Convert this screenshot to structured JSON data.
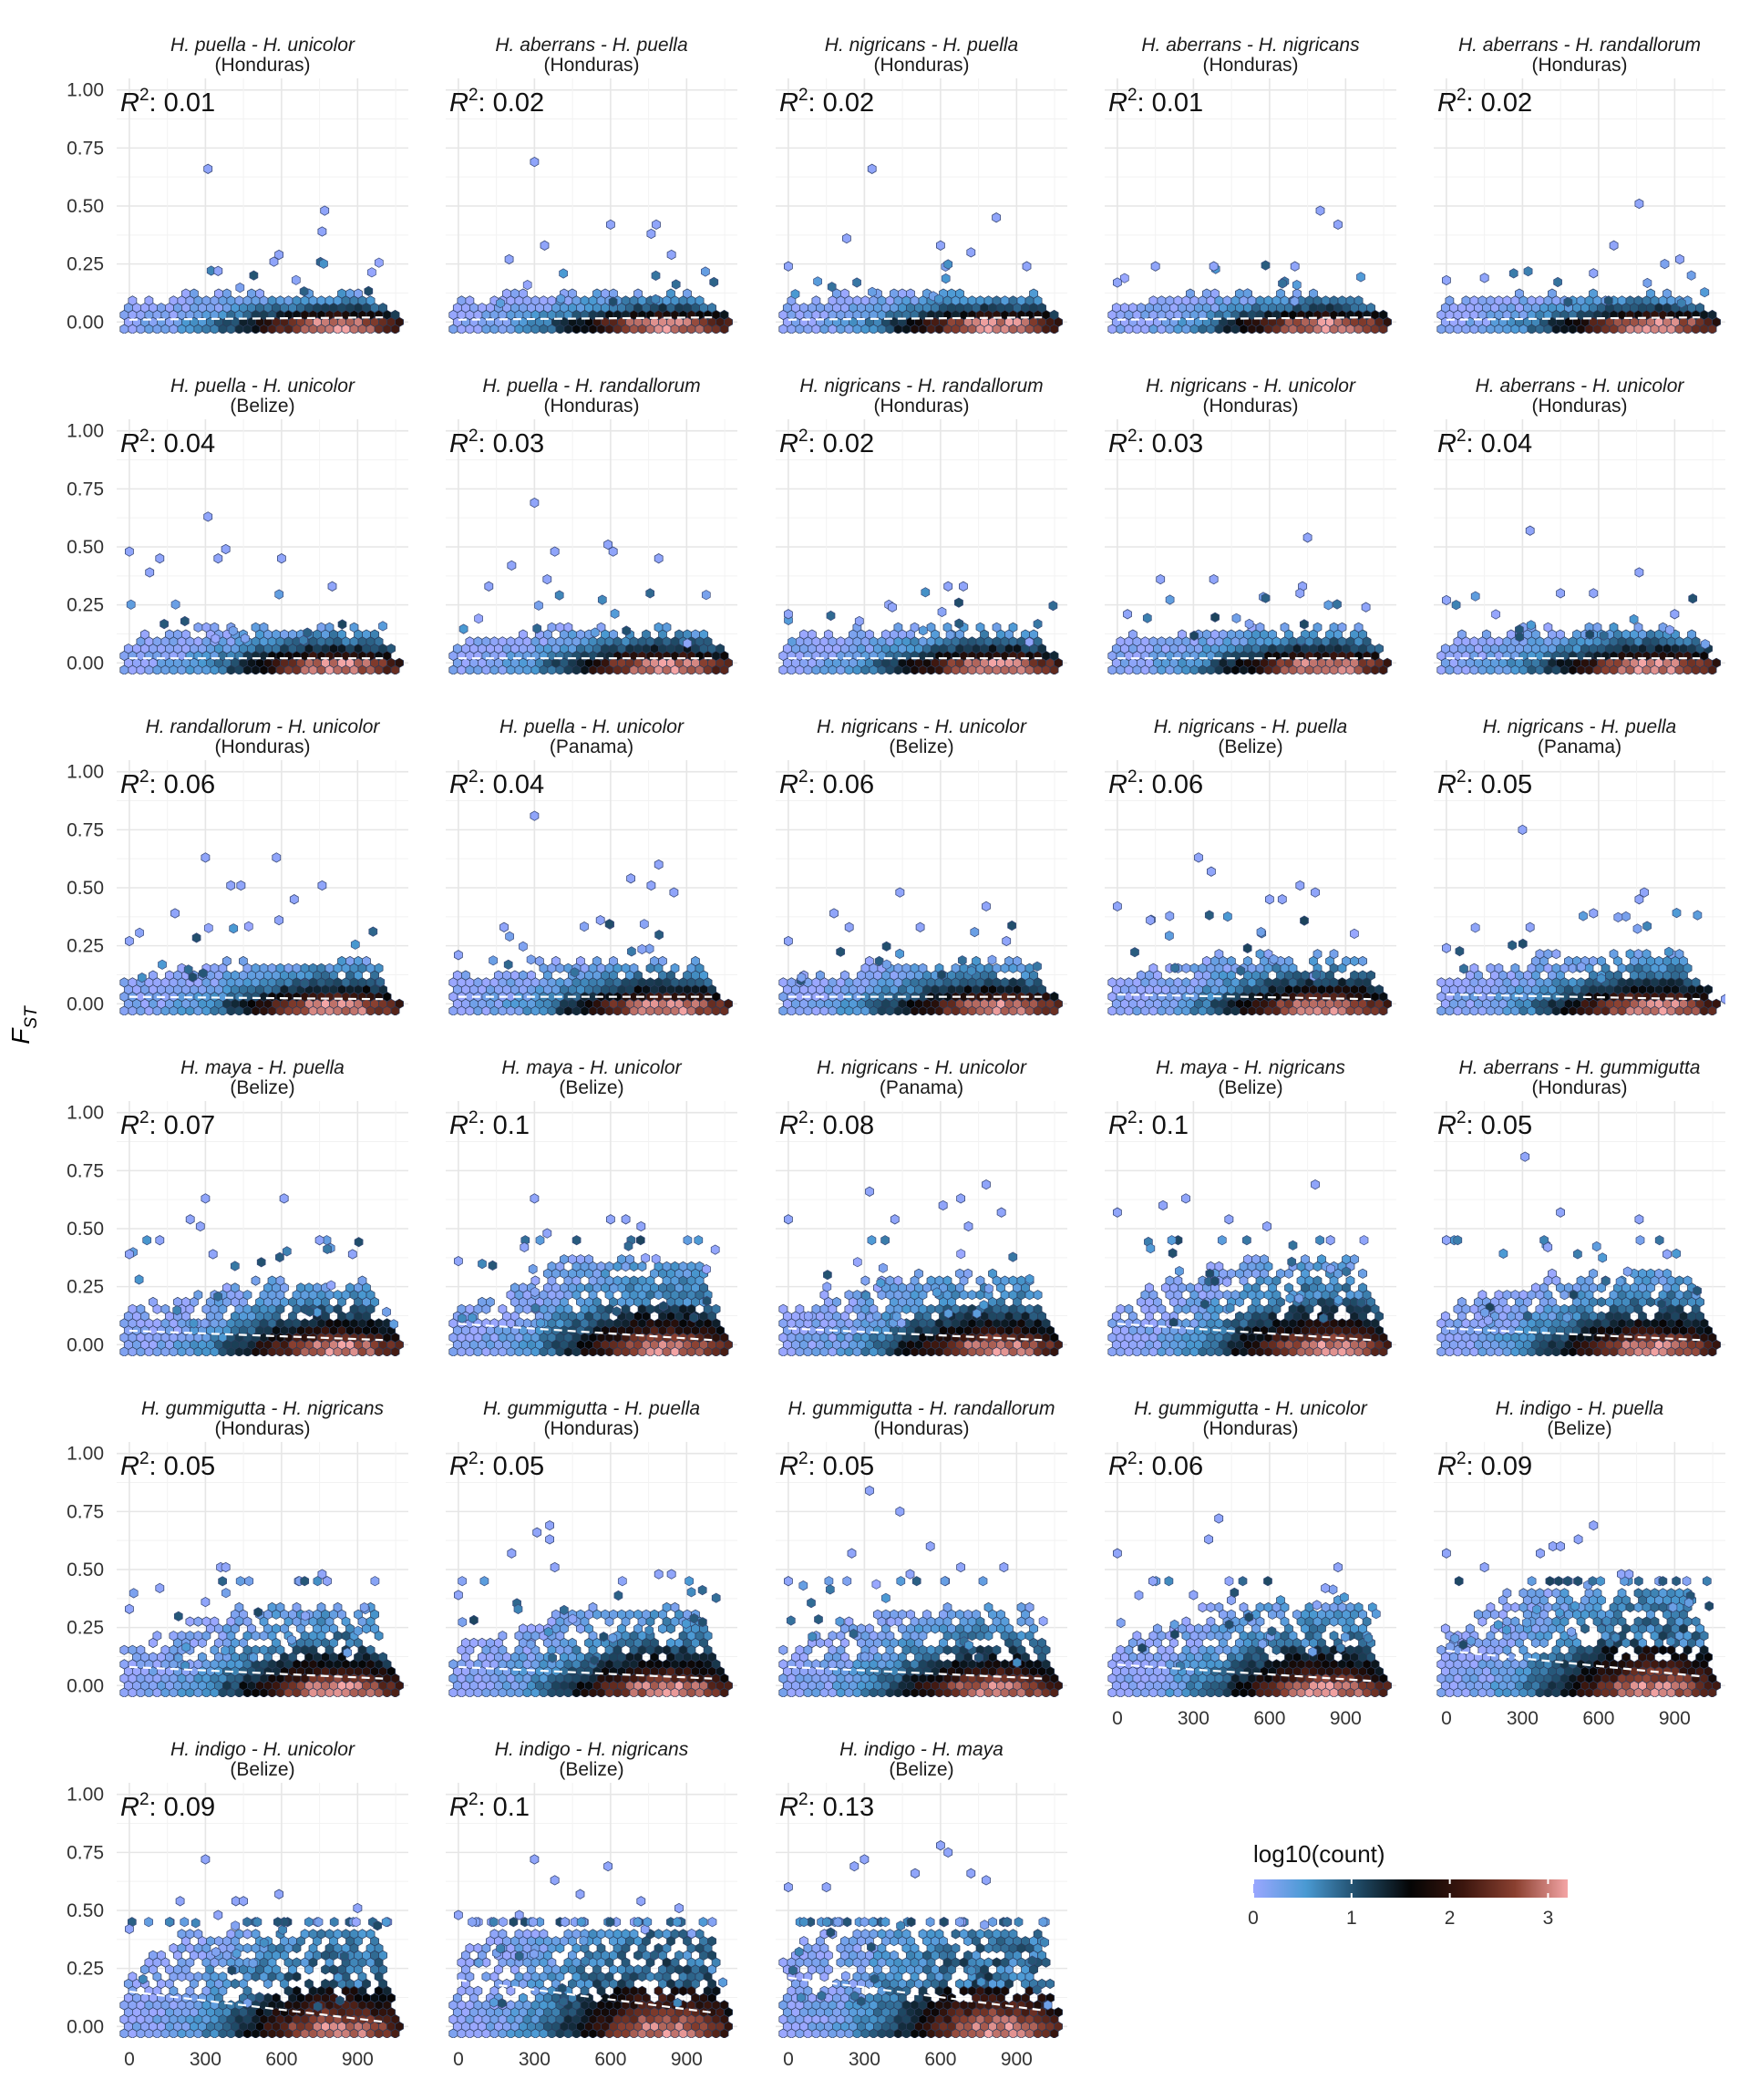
{
  "chart_data": {
    "type": "hexbin-faceted",
    "y_axis_label": "F",
    "y_axis_label_sub": "ST",
    "ylim": [
      -0.05,
      1.05
    ],
    "y_ticks": [
      0.0,
      0.25,
      0.5,
      0.75,
      1.0
    ],
    "y_tick_labels": [
      "0.00",
      "0.25",
      "0.50",
      "0.75",
      "1.00"
    ],
    "xlim": [
      -50,
      1100
    ],
    "x_ticks": [
      0,
      300,
      600,
      900
    ],
    "x_tick_labels": [
      "0",
      "300",
      "600",
      "900"
    ],
    "r2_prefix": "R",
    "r2_sup": "2",
    "legend": {
      "title": "log10(count)",
      "ticks": [
        0,
        1,
        2,
        3
      ],
      "tick_labels": [
        "0",
        "1",
        "2",
        "3"
      ],
      "range": [
        0,
        3.2
      ],
      "colors": [
        "#9aa7ff",
        "#4a9ad3",
        "#1f4a66",
        "#050505",
        "#3b160e",
        "#8a4030",
        "#f4a5a5"
      ]
    },
    "facets": [
      {
        "pair": "H. puella - H. unicolor",
        "region": "(Honduras)",
        "r2": "0.01",
        "outliers": [
          [
            310,
            0.66
          ],
          [
            770,
            0.48
          ],
          [
            760,
            0.39
          ],
          [
            590,
            0.29
          ],
          [
            570,
            0.26
          ],
          [
            350,
            0.22
          ]
        ],
        "trend": [
          0.01,
          0.02
        ]
      },
      {
        "pair": "H. aberrans - H. puella",
        "region": "(Honduras)",
        "r2": "0.02",
        "outliers": [
          [
            300,
            0.69
          ],
          [
            600,
            0.42
          ],
          [
            780,
            0.42
          ],
          [
            760,
            0.38
          ],
          [
            840,
            0.29
          ],
          [
            340,
            0.33
          ],
          [
            200,
            0.27
          ]
        ],
        "trend": [
          0.01,
          0.02
        ]
      },
      {
        "pair": "H. nigricans - H. puella",
        "region": "(Honduras)",
        "r2": "0.02",
        "outliers": [
          [
            330,
            0.66
          ],
          [
            820,
            0.45
          ],
          [
            720,
            0.3
          ],
          [
            600,
            0.33
          ],
          [
            230,
            0.36
          ],
          [
            0,
            0.24
          ],
          [
            940,
            0.24
          ]
        ],
        "trend": [
          0.01,
          0.02
        ]
      },
      {
        "pair": "H. aberrans - H. nigricans",
        "region": "(Honduras)",
        "r2": "0.01",
        "outliers": [
          [
            800,
            0.48
          ],
          [
            870,
            0.42
          ],
          [
            150,
            0.24
          ],
          [
            380,
            0.24
          ],
          [
            700,
            0.24
          ],
          [
            0,
            0.17
          ]
        ],
        "trend": [
          0.01,
          0.02
        ]
      },
      {
        "pair": "H. aberrans - H. randallorum",
        "region": "(Honduras)",
        "r2": "0.02",
        "outliers": [
          [
            760,
            0.51
          ],
          [
            660,
            0.33
          ],
          [
            920,
            0.27
          ],
          [
            580,
            0.21
          ],
          [
            0,
            0.18
          ],
          [
            150,
            0.19
          ]
        ],
        "trend": [
          0.01,
          0.02
        ]
      },
      {
        "pair": "H. puella - H. unicolor",
        "region": "(Belize)",
        "r2": "0.04",
        "outliers": [
          [
            310,
            0.63
          ],
          [
            0,
            0.48
          ],
          [
            380,
            0.49
          ],
          [
            350,
            0.45
          ],
          [
            600,
            0.45
          ],
          [
            120,
            0.45
          ],
          [
            80,
            0.39
          ],
          [
            800,
            0.33
          ]
        ],
        "trend": [
          0.02,
          0.02
        ]
      },
      {
        "pair": "H. puella - H. randallorum",
        "region": "(Honduras)",
        "r2": "0.03",
        "outliers": [
          [
            300,
            0.69
          ],
          [
            590,
            0.51
          ],
          [
            380,
            0.48
          ],
          [
            610,
            0.48
          ],
          [
            790,
            0.45
          ],
          [
            210,
            0.42
          ],
          [
            120,
            0.33
          ],
          [
            350,
            0.36
          ]
        ],
        "trend": [
          0.02,
          0.02
        ]
      },
      {
        "pair": "H. nigricans - H. randallorum",
        "region": "(Honduras)",
        "r2": "0.02",
        "outliers": [
          [
            630,
            0.33
          ],
          [
            690,
            0.33
          ],
          [
            0,
            0.21
          ],
          [
            410,
            0.24
          ],
          [
            280,
            0.18
          ],
          [
            950,
            0.09
          ]
        ],
        "trend": [
          0.02,
          0.02
        ]
      },
      {
        "pair": "H. nigricans - H. unicolor",
        "region": "(Honduras)",
        "r2": "0.03",
        "outliers": [
          [
            750,
            0.54
          ],
          [
            730,
            0.33
          ],
          [
            720,
            0.3
          ],
          [
            170,
            0.36
          ],
          [
            380,
            0.36
          ],
          [
            980,
            0.24
          ],
          [
            40,
            0.21
          ]
        ],
        "trend": [
          0.02,
          0.02
        ]
      },
      {
        "pair": "H. aberrans - H. unicolor",
        "region": "(Honduras)",
        "r2": "0.04",
        "outliers": [
          [
            330,
            0.57
          ],
          [
            760,
            0.39
          ],
          [
            450,
            0.3
          ],
          [
            580,
            0.3
          ],
          [
            900,
            0.21
          ],
          [
            0,
            0.27
          ]
        ],
        "trend": [
          0.02,
          0.02
        ]
      },
      {
        "pair": "H. randallorum - H. unicolor",
        "region": "(Honduras)",
        "r2": "0.06",
        "outliers": [
          [
            300,
            0.63
          ],
          [
            580,
            0.63
          ],
          [
            400,
            0.51
          ],
          [
            440,
            0.51
          ],
          [
            760,
            0.51
          ],
          [
            650,
            0.45
          ],
          [
            590,
            0.36
          ],
          [
            0,
            0.27
          ],
          [
            180,
            0.39
          ]
        ],
        "trend": [
          0.03,
          0.02
        ]
      },
      {
        "pair": "H. puella - H. unicolor",
        "region": "(Panama)",
        "r2": "0.04",
        "outliers": [
          [
            300,
            0.81
          ],
          [
            790,
            0.6
          ],
          [
            680,
            0.54
          ],
          [
            760,
            0.51
          ],
          [
            850,
            0.48
          ],
          [
            560,
            0.36
          ],
          [
            180,
            0.33
          ],
          [
            0,
            0.21
          ]
        ],
        "trend": [
          0.03,
          0.03
        ]
      },
      {
        "pair": "H. nigricans - H. unicolor",
        "region": "(Belize)",
        "r2": "0.06",
        "outliers": [
          [
            440,
            0.48
          ],
          [
            780,
            0.42
          ],
          [
            180,
            0.39
          ],
          [
            240,
            0.33
          ],
          [
            520,
            0.33
          ],
          [
            0,
            0.27
          ],
          [
            860,
            0.27
          ]
        ],
        "trend": [
          0.03,
          0.03
        ]
      },
      {
        "pair": "H. nigricans - H. puella",
        "region": "(Belize)",
        "r2": "0.06",
        "outliers": [
          [
            320,
            0.63
          ],
          [
            370,
            0.57
          ],
          [
            720,
            0.51
          ],
          [
            780,
            0.48
          ],
          [
            600,
            0.45
          ],
          [
            650,
            0.45
          ],
          [
            0,
            0.42
          ],
          [
            130,
            0.36
          ]
        ],
        "trend": [
          0.04,
          0.02
        ]
      },
      {
        "pair": "H. nigricans - H. puella",
        "region": "(Panama)",
        "r2": "0.05",
        "outliers": [
          [
            300,
            0.75
          ],
          [
            780,
            0.48
          ],
          [
            760,
            0.45
          ],
          [
            580,
            0.39
          ],
          [
            330,
            0.33
          ],
          [
            0,
            0.24
          ],
          [
            1100,
            0.02
          ]
        ],
        "trend": [
          0.04,
          0.02
        ]
      },
      {
        "pair": "H. maya - H. puella",
        "region": "(Belize)",
        "r2": "0.07",
        "outliers": [
          [
            300,
            0.63
          ],
          [
            610,
            0.63
          ],
          [
            240,
            0.54
          ],
          [
            280,
            0.51
          ],
          [
            120,
            0.45
          ],
          [
            750,
            0.45
          ],
          [
            0,
            0.39
          ],
          [
            330,
            0.39
          ],
          [
            880,
            0.39
          ]
        ],
        "trend": [
          0.06,
          0.02
        ]
      },
      {
        "pair": "H. maya - H. unicolor",
        "region": "(Belize)",
        "r2": "0.1",
        "outliers": [
          [
            300,
            0.63
          ],
          [
            350,
            0.48
          ],
          [
            600,
            0.54
          ],
          [
            660,
            0.54
          ],
          [
            720,
            0.51
          ],
          [
            260,
            0.42
          ],
          [
            0,
            0.36
          ]
        ],
        "trend": [
          0.09,
          0.02
        ]
      },
      {
        "pair": "H. nigricans - H. unicolor",
        "region": "(Panama)",
        "r2": "0.08",
        "outliers": [
          [
            780,
            0.69
          ],
          [
            320,
            0.66
          ],
          [
            680,
            0.63
          ],
          [
            610,
            0.6
          ],
          [
            840,
            0.57
          ],
          [
            0,
            0.54
          ],
          [
            420,
            0.54
          ],
          [
            710,
            0.51
          ]
        ],
        "trend": [
          0.07,
          0.02
        ]
      },
      {
        "pair": "H. maya - H. nigricans",
        "region": "(Belize)",
        "r2": "0.1",
        "outliers": [
          [
            780,
            0.69
          ],
          [
            270,
            0.63
          ],
          [
            180,
            0.6
          ],
          [
            0,
            0.57
          ],
          [
            440,
            0.54
          ],
          [
            590,
            0.51
          ],
          [
            840,
            0.45
          ]
        ],
        "trend": [
          0.09,
          0.02
        ]
      },
      {
        "pair": "H. aberrans - H. gummigutta",
        "region": "(Honduras)",
        "r2": "0.05",
        "outliers": [
          [
            310,
            0.81
          ],
          [
            450,
            0.57
          ],
          [
            760,
            0.54
          ],
          [
            0,
            0.45
          ],
          [
            400,
            0.42
          ],
          [
            870,
            0.39
          ]
        ],
        "trend": [
          0.07,
          0.02
        ]
      },
      {
        "pair": "H. gummigutta - H. nigricans",
        "region": "(Honduras)",
        "r2": "0.05",
        "outliers": [
          [
            360,
            0.51
          ],
          [
            380,
            0.51
          ],
          [
            760,
            0.48
          ],
          [
            780,
            0.45
          ],
          [
            120,
            0.42
          ],
          [
            0,
            0.33
          ],
          [
            300,
            0.36
          ]
        ],
        "trend": [
          0.08,
          0.03
        ]
      },
      {
        "pair": "H. gummigutta - H. puella",
        "region": "(Honduras)",
        "r2": "0.05",
        "outliers": [
          [
            360,
            0.69
          ],
          [
            310,
            0.66
          ],
          [
            210,
            0.57
          ],
          [
            360,
            0.63
          ],
          [
            380,
            0.51
          ],
          [
            790,
            0.48
          ],
          [
            840,
            0.48
          ],
          [
            0,
            0.39
          ]
        ],
        "trend": [
          0.08,
          0.03
        ]
      },
      {
        "pair": "H. gummigutta - H. randallorum",
        "region": "(Honduras)",
        "r2": "0.05",
        "outliers": [
          [
            320,
            0.84
          ],
          [
            440,
            0.75
          ],
          [
            560,
            0.6
          ],
          [
            680,
            0.51
          ],
          [
            0,
            0.45
          ],
          [
            850,
            0.51
          ],
          [
            480,
            0.48
          ],
          [
            250,
            0.57
          ]
        ],
        "trend": [
          0.08,
          0.03
        ]
      },
      {
        "pair": "H. gummigutta - H. unicolor",
        "region": "(Honduras)",
        "r2": "0.06",
        "outliers": [
          [
            400,
            0.72
          ],
          [
            360,
            0.63
          ],
          [
            0,
            0.57
          ],
          [
            140,
            0.45
          ],
          [
            870,
            0.51
          ],
          [
            820,
            0.42
          ],
          [
            300,
            0.39
          ]
        ],
        "trend": [
          0.09,
          0.02
        ]
      },
      {
        "pair": "H. indigo - H. puella",
        "region": "(Belize)",
        "r2": "0.09",
        "outliers": [
          [
            580,
            0.69
          ],
          [
            0,
            0.57
          ],
          [
            420,
            0.6
          ],
          [
            450,
            0.6
          ],
          [
            370,
            0.57
          ],
          [
            520,
            0.63
          ],
          [
            690,
            0.48
          ],
          [
            720,
            0.48
          ],
          [
            150,
            0.51
          ]
        ],
        "trend": [
          0.15,
          0.04
        ]
      },
      {
        "pair": "H. indigo - H. unicolor",
        "region": "(Belize)",
        "r2": "0.09",
        "outliers": [
          [
            300,
            0.72
          ],
          [
            200,
            0.54
          ],
          [
            420,
            0.54
          ],
          [
            450,
            0.54
          ],
          [
            590,
            0.57
          ],
          [
            0,
            0.42
          ],
          [
            900,
            0.51
          ],
          [
            350,
            0.48
          ]
        ],
        "trend": [
          0.15,
          0.02
        ]
      },
      {
        "pair": "H. indigo - H. nigricans",
        "region": "(Belize)",
        "r2": "0.1",
        "outliers": [
          [
            300,
            0.72
          ],
          [
            590,
            0.69
          ],
          [
            380,
            0.63
          ],
          [
            480,
            0.57
          ],
          [
            0,
            0.48
          ],
          [
            870,
            0.51
          ],
          [
            720,
            0.54
          ],
          [
            240,
            0.48
          ]
        ],
        "trend": [
          0.2,
          0.06
        ]
      },
      {
        "pair": "H. indigo - H. maya",
        "region": "(Belize)",
        "r2": "0.13",
        "outliers": [
          [
            600,
            0.78
          ],
          [
            630,
            0.75
          ],
          [
            300,
            0.72
          ],
          [
            500,
            0.66
          ],
          [
            0,
            0.6
          ],
          [
            720,
            0.66
          ],
          [
            780,
            0.63
          ],
          [
            260,
            0.69
          ],
          [
            150,
            0.6
          ]
        ],
        "trend": [
          0.21,
          0.07
        ]
      }
    ]
  }
}
